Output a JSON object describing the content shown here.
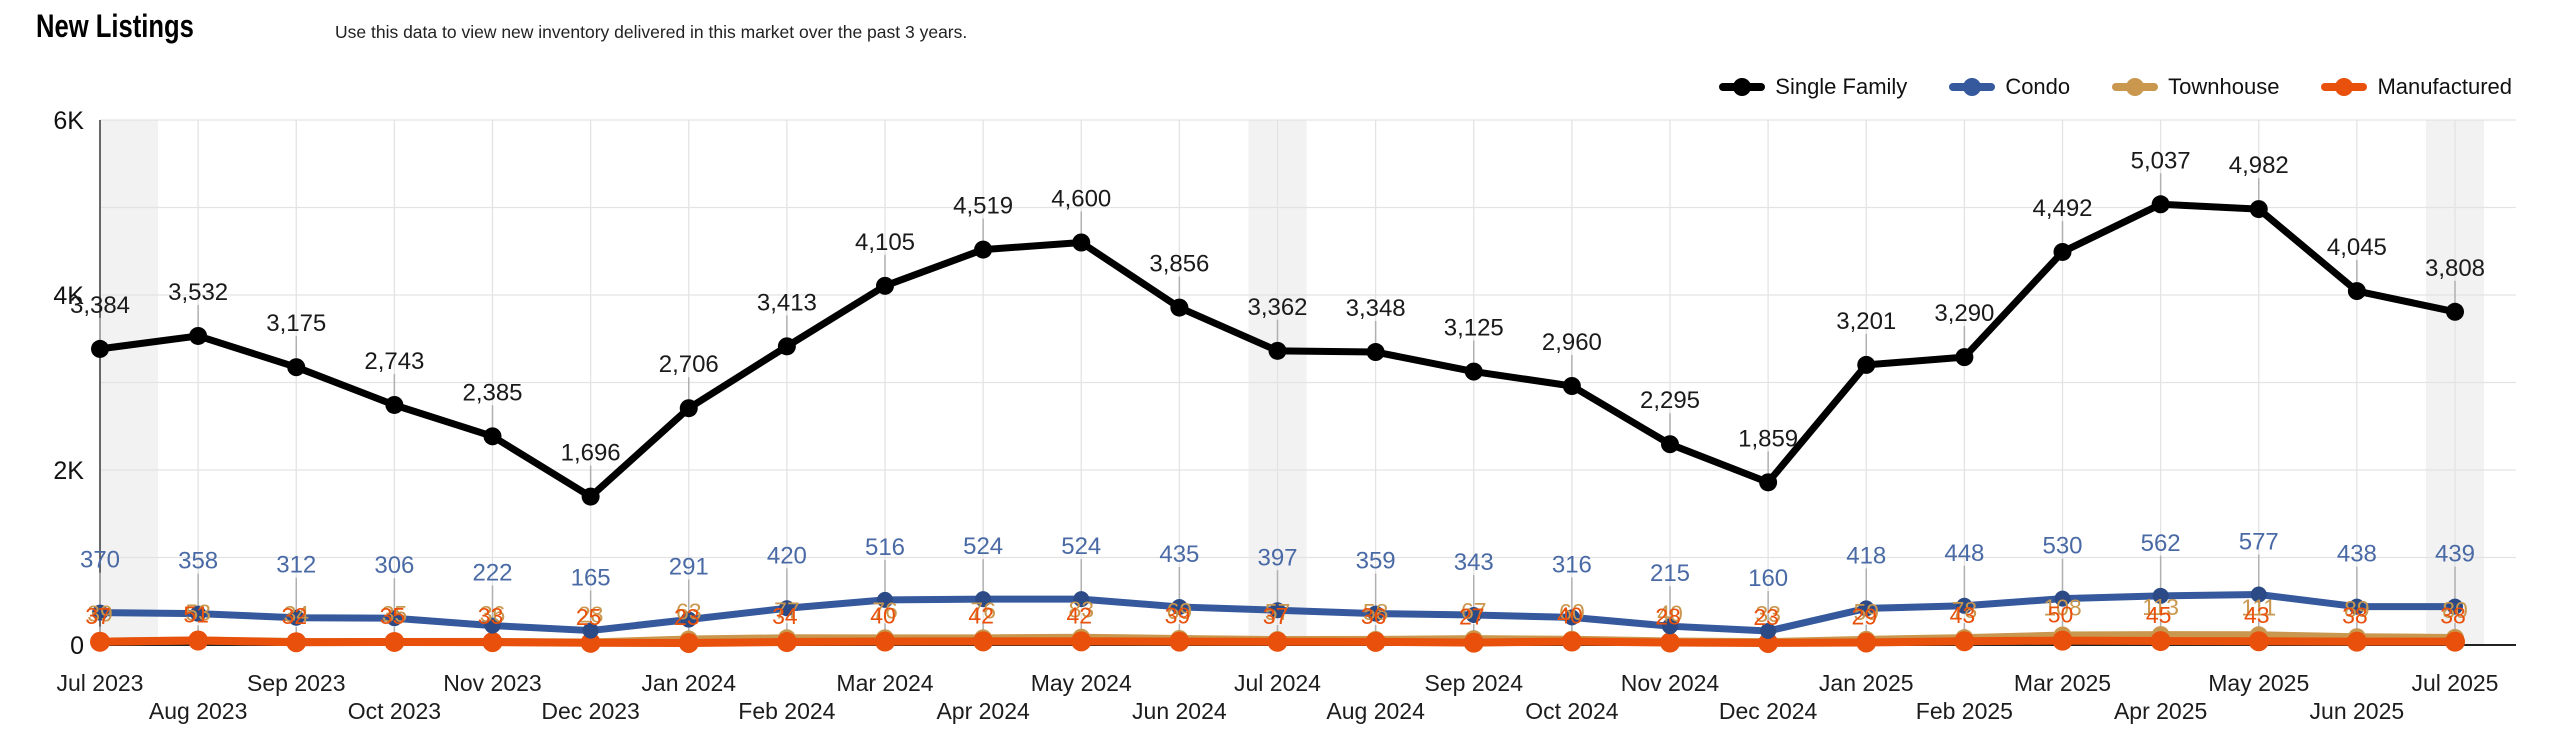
{
  "header": {
    "title": "New Listings",
    "subtitle": "Use this data to view new inventory delivered in this market over the past 3 years."
  },
  "chart_data": {
    "type": "line",
    "title": "New Listings",
    "x_categories": [
      "Jul 2023",
      "Aug 2023",
      "Sep 2023",
      "Oct 2023",
      "Nov 2023",
      "Dec 2023",
      "Jan 2024",
      "Feb 2024",
      "Mar 2024",
      "Apr 2024",
      "May 2024",
      "Jun 2024",
      "Jul 2024",
      "Aug 2024",
      "Sep 2024",
      "Oct 2024",
      "Nov 2024",
      "Dec 2024",
      "Jan 2025",
      "Feb 2025",
      "Mar 2025",
      "Apr 2025",
      "May 2025",
      "Jun 2025",
      "Jul 2025"
    ],
    "y_axis": {
      "min": 0,
      "max": 6000,
      "tick_values": [
        0,
        2000,
        4000,
        6000
      ],
      "tick_labels": [
        "0",
        "2K",
        "4K",
        "6K"
      ],
      "gridline_step": 1000
    },
    "grid": true,
    "legend_position": "top-right",
    "highlight_column_indices": [
      0,
      12,
      24
    ],
    "highlight_color": "#f2f2f2",
    "series": [
      {
        "name": "Single Family",
        "color": "#000000",
        "dot_color": "#000000",
        "label_color": "#1a1a1a",
        "values": [
          3384,
          3532,
          3175,
          2743,
          2385,
          1696,
          2706,
          3413,
          4105,
          4519,
          4600,
          3856,
          3362,
          3348,
          3125,
          2960,
          2295,
          1859,
          3201,
          3290,
          4492,
          5037,
          4982,
          4045,
          3808
        ],
        "label_format": "comma"
      },
      {
        "name": "Condo",
        "color": "#35599c",
        "dot_color": "#2b4a86",
        "label_color": "#4a6aa5",
        "values": [
          370,
          358,
          312,
          306,
          222,
          165,
          291,
          420,
          516,
          524,
          524,
          435,
          397,
          359,
          343,
          316,
          215,
          160,
          418,
          448,
          530,
          562,
          577,
          438,
          439
        ],
        "label_format": "plain"
      },
      {
        "name": "Townhouse",
        "color": "#c9974d",
        "dot_color": "#c9974d",
        "label_color": "#c9974d",
        "values": [
          39,
          53,
          34,
          35,
          36,
          28,
          63,
          77,
          76,
          76,
          83,
          69,
          57,
          58,
          67,
          60,
          40,
          33,
          59,
          78,
          108,
          113,
          111,
          89,
          80
        ],
        "label_format": "plain"
      },
      {
        "name": "Manufactured",
        "color": "#e8500b",
        "dot_color": "#e8500b",
        "label_color": "#e8500b",
        "values": [
          37,
          51,
          32,
          35,
          33,
          25,
          23,
          34,
          40,
          42,
          42,
          39,
          37,
          36,
          27,
          40,
          28,
          23,
          29,
          43,
          50,
          45,
          43,
          38,
          38
        ],
        "label_format": "plain"
      }
    ]
  }
}
